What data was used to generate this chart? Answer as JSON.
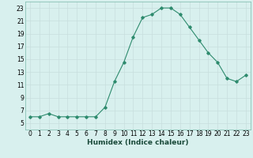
{
  "xlabel": "Humidex (Indice chaleur)",
  "ylabel": "",
  "x_values": [
    0,
    1,
    2,
    3,
    4,
    5,
    6,
    7,
    8,
    9,
    10,
    11,
    12,
    13,
    14,
    15,
    16,
    17,
    18,
    19,
    20,
    21,
    22,
    23
  ],
  "y_values": [
    6,
    6,
    6.5,
    6,
    6,
    6,
    6,
    6,
    7.5,
    11.5,
    14.5,
    18.5,
    21.5,
    22,
    23,
    23,
    22,
    20,
    18,
    16,
    14.5,
    12,
    11.5,
    12.5
  ],
  "line_color": "#2e8b6e",
  "bg_color": "#d8f0ee",
  "grid_color": "#c8dedd",
  "ylim": [
    4,
    24
  ],
  "xlim": [
    -0.5,
    23.5
  ],
  "yticks": [
    5,
    7,
    9,
    11,
    13,
    15,
    17,
    19,
    21,
    23
  ],
  "xticks": [
    0,
    1,
    2,
    3,
    4,
    5,
    6,
    7,
    8,
    9,
    10,
    11,
    12,
    13,
    14,
    15,
    16,
    17,
    18,
    19,
    20,
    21,
    22,
    23
  ],
  "label_fontsize": 6.5,
  "tick_fontsize": 5.5
}
